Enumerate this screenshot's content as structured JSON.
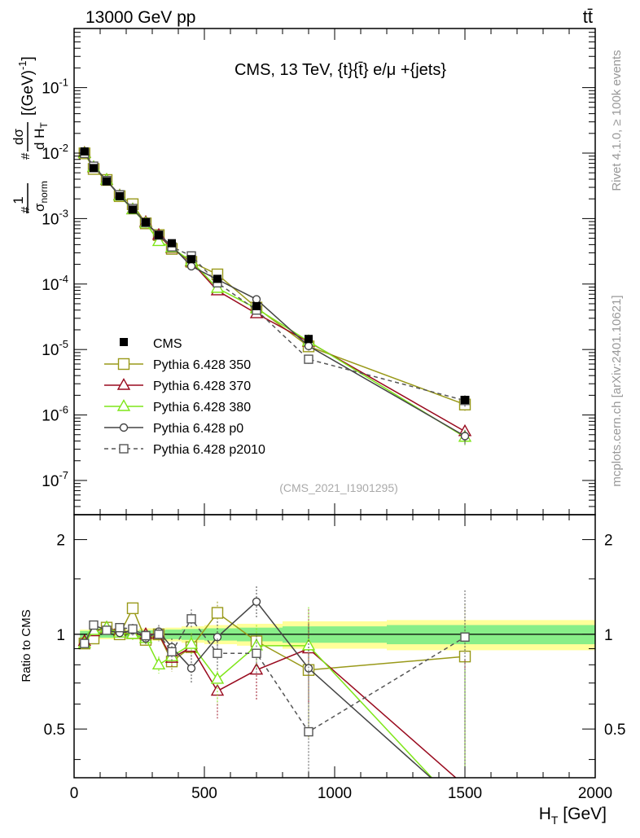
{
  "header": {
    "left": "13000 GeV pp",
    "right": "tt̄"
  },
  "side_labels": {
    "rivet": "Rivet 4.1.0, ≥ 100k events",
    "mcplots": "mcplots.cern.ch [arXiv:2401.10621]"
  },
  "chart_data": {
    "type": "line",
    "title": "CMS, 13 TeV, {t}{t̄} e/μ +{jets}",
    "watermark": "(CMS_2021_I1901295)",
    "xlabel": "H_T [GeV]",
    "ylabel": "#1/σ_norm #dσ/dH_T [(GeV)^-1]",
    "ratio_ylabel": "Ratio to CMS",
    "xlim": [
      0,
      2000
    ],
    "ylim": [
      3e-08,
      0.8
    ],
    "ratio_ylim": [
      0.35,
      2.4
    ],
    "x_ticks": [
      0,
      500,
      1000,
      1500,
      2000
    ],
    "y_tick_labels": [
      "10^-1",
      "10^-2",
      "10^-3",
      "10^-4",
      "10^-5",
      "10^-6",
      "10^-7"
    ],
    "ratio_tick_labels": [
      "2",
      "1",
      "0.5"
    ],
    "x": [
      40,
      75,
      125,
      175,
      225,
      275,
      325,
      375,
      450,
      550,
      700,
      900,
      1500
    ],
    "data": {
      "name": "CMS",
      "values": [
        0.0106,
        0.0059,
        0.0037,
        0.0022,
        0.00137,
        0.00088,
        0.00056,
        0.00042,
        0.00024,
        0.00012,
        4.6e-05,
        1.45e-05,
        1.7e-06
      ],
      "rel_err": [
        0.03,
        0.03,
        0.03,
        0.03,
        0.03,
        0.04,
        0.04,
        0.05,
        0.06,
        0.06,
        0.08,
        0.1,
        0.11
      ]
    },
    "band": {
      "inner_rel": [
        0.025,
        0.025,
        0.025,
        0.025,
        0.025,
        0.03,
        0.03,
        0.035,
        0.04,
        0.045,
        0.05,
        0.06,
        0.07
      ],
      "outer_rel": [
        0.035,
        0.035,
        0.035,
        0.035,
        0.035,
        0.045,
        0.045,
        0.05,
        0.06,
        0.07,
        0.08,
        0.1,
        0.11
      ]
    },
    "series": [
      {
        "name": "Pythia 6.428 350",
        "color": "#999919",
        "marker": "open-square",
        "dash": "",
        "ratio": [
          0.935,
          0.97,
          1.05,
          1.0,
          1.21,
          0.96,
          1.0,
          0.82,
          0.91,
          1.17,
          0.95,
          0.77,
          0.85
        ],
        "ratio_err": [
          0.02,
          0.02,
          0.02,
          0.03,
          0.04,
          0.04,
          0.05,
          0.06,
          0.08,
          0.1,
          0.12,
          0.3,
          0.4
        ]
      },
      {
        "name": "Pythia 6.428 370",
        "color": "#990a1e",
        "marker": "open-triangle",
        "dash": "",
        "ratio": [
          0.95,
          1.02,
          1.05,
          1.02,
          1.0,
          1.0,
          1.0,
          0.84,
          0.91,
          0.66,
          0.77,
          0.9,
          0.33
        ],
        "ratio_err": [
          0.02,
          0.02,
          0.02,
          0.03,
          0.04,
          0.04,
          0.05,
          0.06,
          0.08,
          0.12,
          0.15,
          0.3,
          0.5
        ]
      },
      {
        "name": "Pythia 6.428 380",
        "color": "#7fe619",
        "marker": "open-triangle",
        "dash": "",
        "ratio": [
          0.935,
          1.03,
          1.05,
          1.01,
          1.0,
          0.97,
          0.8,
          0.85,
          0.93,
          0.72,
          0.92,
          0.92,
          0.27
        ],
        "ratio_err": [
          0.02,
          0.02,
          0.02,
          0.03,
          0.04,
          0.04,
          0.05,
          0.06,
          0.08,
          0.12,
          0.15,
          0.3,
          0.5
        ]
      },
      {
        "name": "Pythia 6.428 p0",
        "color": "#444444",
        "marker": "open-circle",
        "dash": "",
        "ratio": [
          0.935,
          1.07,
          1.03,
          1.01,
          1.03,
          0.97,
          1.02,
          0.91,
          0.78,
          0.98,
          1.27,
          0.78,
          0.28
        ],
        "ratio_err": [
          0.02,
          0.02,
          0.02,
          0.03,
          0.04,
          0.04,
          0.05,
          0.06,
          0.08,
          0.12,
          0.15,
          0.3,
          0.5
        ]
      },
      {
        "name": "Pythia 6.428 p2010",
        "color": "#555555",
        "marker": "open-square-small",
        "dash": "5,4",
        "ratio": [
          0.935,
          1.07,
          1.03,
          1.05,
          1.04,
          0.99,
          1.0,
          0.88,
          1.12,
          0.87,
          0.87,
          0.49,
          0.98
        ],
        "ratio_err": [
          0.02,
          0.02,
          0.02,
          0.03,
          0.04,
          0.04,
          0.05,
          0.06,
          0.08,
          0.1,
          0.12,
          0.3,
          0.4
        ]
      }
    ]
  }
}
